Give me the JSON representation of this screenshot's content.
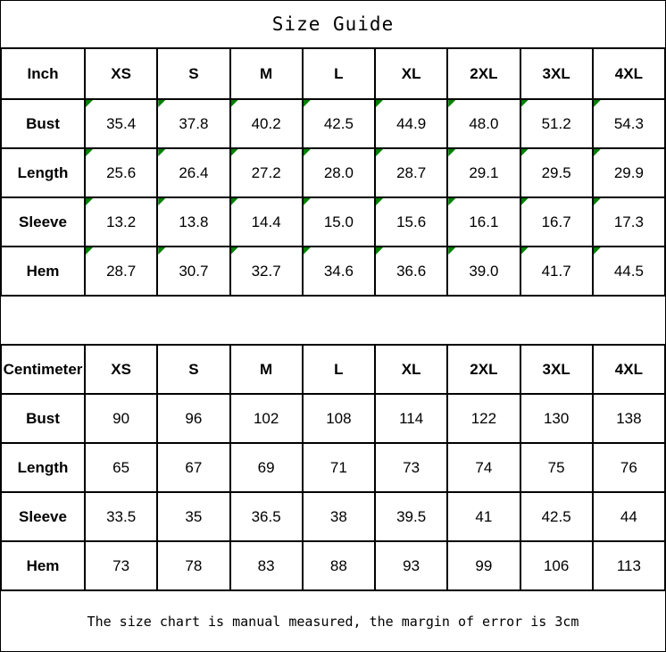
{
  "page_title": "Size Guide",
  "footer_note": "The size chart is manual measured, the margin of error is 3cm",
  "colors": {
    "background": "#ffffff",
    "border": "#000000",
    "text": "#000000",
    "corner_marker_green": "#008000"
  },
  "chart_data": [
    {
      "type": "table",
      "unit": "Inch",
      "columns": [
        "XS",
        "S",
        "M",
        "L",
        "XL",
        "2XL",
        "3XL",
        "4XL"
      ],
      "rows": [
        {
          "label": "Bust",
          "values": [
            "35.4",
            "37.8",
            "40.2",
            "42.5",
            "44.9",
            "48.0",
            "51.2",
            "54.3"
          ]
        },
        {
          "label": "Length",
          "values": [
            "25.6",
            "26.4",
            "27.2",
            "28.0",
            "28.7",
            "29.1",
            "29.5",
            "29.9"
          ]
        },
        {
          "label": "Sleeve",
          "values": [
            "13.2",
            "13.8",
            "14.4",
            "15.0",
            "15.6",
            "16.1",
            "16.7",
            "17.3"
          ]
        },
        {
          "label": "Hem",
          "values": [
            "28.7",
            "30.7",
            "32.7",
            "34.6",
            "36.6",
            "39.0",
            "41.7",
            "44.5"
          ]
        }
      ],
      "cell_corner_marker": true
    },
    {
      "type": "table",
      "unit": "Centimeter",
      "columns": [
        "XS",
        "S",
        "M",
        "L",
        "XL",
        "2XL",
        "3XL",
        "4XL"
      ],
      "rows": [
        {
          "label": "Bust",
          "values": [
            "90",
            "96",
            "102",
            "108",
            "114",
            "122",
            "130",
            "138"
          ]
        },
        {
          "label": "Length",
          "values": [
            "65",
            "67",
            "69",
            "71",
            "73",
            "74",
            "75",
            "76"
          ]
        },
        {
          "label": "Sleeve",
          "values": [
            "33.5",
            "35",
            "36.5",
            "38",
            "39.5",
            "41",
            "42.5",
            "44"
          ]
        },
        {
          "label": "Hem",
          "values": [
            "73",
            "78",
            "83",
            "88",
            "93",
            "99",
            "106",
            "113"
          ]
        }
      ],
      "cell_corner_marker": false
    }
  ]
}
